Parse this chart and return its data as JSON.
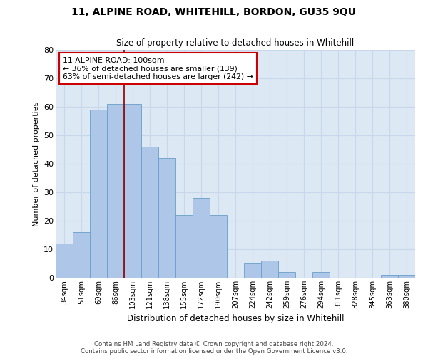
{
  "title1": "11, ALPINE ROAD, WHITEHILL, BORDON, GU35 9QU",
  "title2": "Size of property relative to detached houses in Whitehill",
  "xlabel": "Distribution of detached houses by size in Whitehill",
  "ylabel": "Number of detached properties",
  "categories": [
    "34sqm",
    "51sqm",
    "69sqm",
    "86sqm",
    "103sqm",
    "121sqm",
    "138sqm",
    "155sqm",
    "172sqm",
    "190sqm",
    "207sqm",
    "224sqm",
    "242sqm",
    "259sqm",
    "276sqm",
    "294sqm",
    "311sqm",
    "328sqm",
    "345sqm",
    "363sqm",
    "380sqm"
  ],
  "values": [
    12,
    16,
    59,
    61,
    61,
    46,
    42,
    22,
    28,
    22,
    0,
    5,
    6,
    2,
    0,
    2,
    0,
    0,
    0,
    1,
    1
  ],
  "bar_color": "#aec6e8",
  "bar_edge_color": "#6a9fc8",
  "grid_color": "#c8d8ea",
  "background_color": "#dce8f4",
  "annotation_line1": "11 ALPINE ROAD: 100sqm",
  "annotation_line2": "← 36% of detached houses are smaller (139)",
  "annotation_line3": "63% of semi-detached houses are larger (242) →",
  "vline_x": 3.5,
  "ylim": [
    0,
    80
  ],
  "yticks": [
    0,
    10,
    20,
    30,
    40,
    50,
    60,
    70,
    80
  ],
  "footer1": "Contains HM Land Registry data © Crown copyright and database right 2024.",
  "footer2": "Contains public sector information licensed under the Open Government Licence v3.0."
}
